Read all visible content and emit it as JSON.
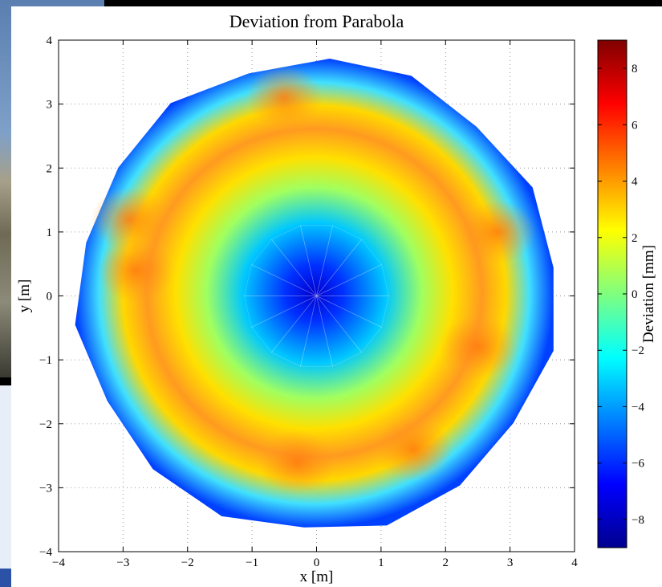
{
  "chart_data": {
    "type": "heatmap",
    "title": "Deviation from Parabola",
    "xlabel": "x [m]",
    "ylabel": "y [m]",
    "colorbar_label": "Deviation [mm]",
    "xlim": [
      -4,
      4
    ],
    "ylim": [
      -4,
      4
    ],
    "clim": [
      -9,
      9
    ],
    "xticks": [
      "−4",
      "−3",
      "−2",
      "−1",
      "0",
      "1",
      "2",
      "3",
      "4"
    ],
    "yticks": [
      "−4",
      "−3",
      "−2",
      "−1",
      "0",
      "1",
      "2",
      "3",
      "4"
    ],
    "cticks": [
      "−8",
      "−6",
      "−4",
      "−2",
      "0",
      "2",
      "4",
      "6",
      "8"
    ],
    "grid": true,
    "colormap": "jet",
    "surface": {
      "shape": "disk",
      "center": [
        0,
        0
      ],
      "outer_radius": 3.7,
      "center_value": -8,
      "ring_radius": 2.6,
      "ring_value": 4,
      "edge_value": -6
    },
    "hotspots": [
      {
        "x": -2.9,
        "y": 1.2,
        "value": 5
      },
      {
        "x": -2.8,
        "y": 0.4,
        "value": 4.5
      },
      {
        "x": -0.5,
        "y": 3.1,
        "value": 4.5
      },
      {
        "x": 2.5,
        "y": -0.8,
        "value": 5.5
      },
      {
        "x": 2.8,
        "y": 1.0,
        "value": 5
      },
      {
        "x": -0.3,
        "y": -2.6,
        "value": 4.5
      },
      {
        "x": 1.5,
        "y": -2.4,
        "value": 4
      }
    ]
  }
}
